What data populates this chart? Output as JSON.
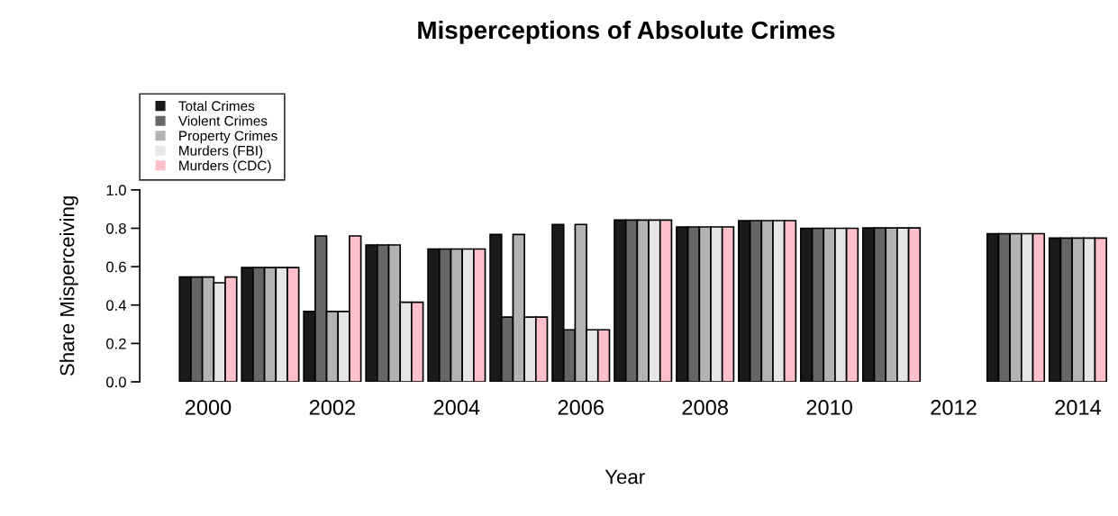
{
  "chart_data": {
    "type": "bar",
    "title": "Misperceptions of Absolute Crimes",
    "xlabel": "Year",
    "ylabel": "Share Misperceiving",
    "categories": [
      "2000",
      null,
      "2002",
      null,
      "2004",
      null,
      "2006",
      null,
      "2008",
      null,
      "2010",
      null,
      "2012",
      null,
      "2014"
    ],
    "series": [
      {
        "name": "Total Crimes",
        "color": "#1a1a1a",
        "values": [
          0.546,
          0.595,
          0.367,
          0.713,
          0.692,
          0.768,
          0.82,
          0.843,
          0.807,
          0.84,
          0.8,
          0.802,
          null,
          0.772,
          0.749
        ]
      },
      {
        "name": "Violent Crimes",
        "color": "#666666",
        "values": [
          0.546,
          0.595,
          0.76,
          0.713,
          0.692,
          0.337,
          0.271,
          0.843,
          0.807,
          0.84,
          0.8,
          0.802,
          null,
          0.772,
          0.749
        ]
      },
      {
        "name": "Property Crimes",
        "color": "#b3b3b3",
        "values": [
          0.546,
          0.595,
          0.367,
          0.713,
          0.692,
          0.768,
          0.82,
          0.843,
          0.807,
          0.84,
          0.8,
          0.802,
          null,
          0.772,
          0.749
        ]
      },
      {
        "name": "Murders (FBI)",
        "color": "#e6e6e6",
        "values": [
          0.516,
          0.595,
          0.367,
          0.415,
          0.692,
          0.337,
          0.271,
          0.843,
          0.807,
          0.84,
          0.8,
          0.802,
          null,
          0.772,
          0.749
        ]
      },
      {
        "name": "Murders (CDC)",
        "color": "#ffc0cb",
        "values": [
          0.546,
          0.595,
          0.76,
          0.415,
          0.692,
          0.337,
          0.271,
          0.843,
          0.807,
          0.84,
          0.8,
          0.802,
          null,
          0.772,
          0.749
        ]
      }
    ],
    "ylim": [
      0,
      1.0
    ],
    "yticks": [
      {
        "value": 0,
        "label": "0.0"
      },
      {
        "value": 0.2,
        "label": "0.2"
      },
      {
        "value": 0.4,
        "label": "0.4"
      },
      {
        "value": 0.6,
        "label": "0.6"
      },
      {
        "value": 0.8,
        "label": "0.8"
      },
      {
        "value": 1.0,
        "label": "1.0"
      }
    ],
    "legend": "top left",
    "grid": false
  }
}
